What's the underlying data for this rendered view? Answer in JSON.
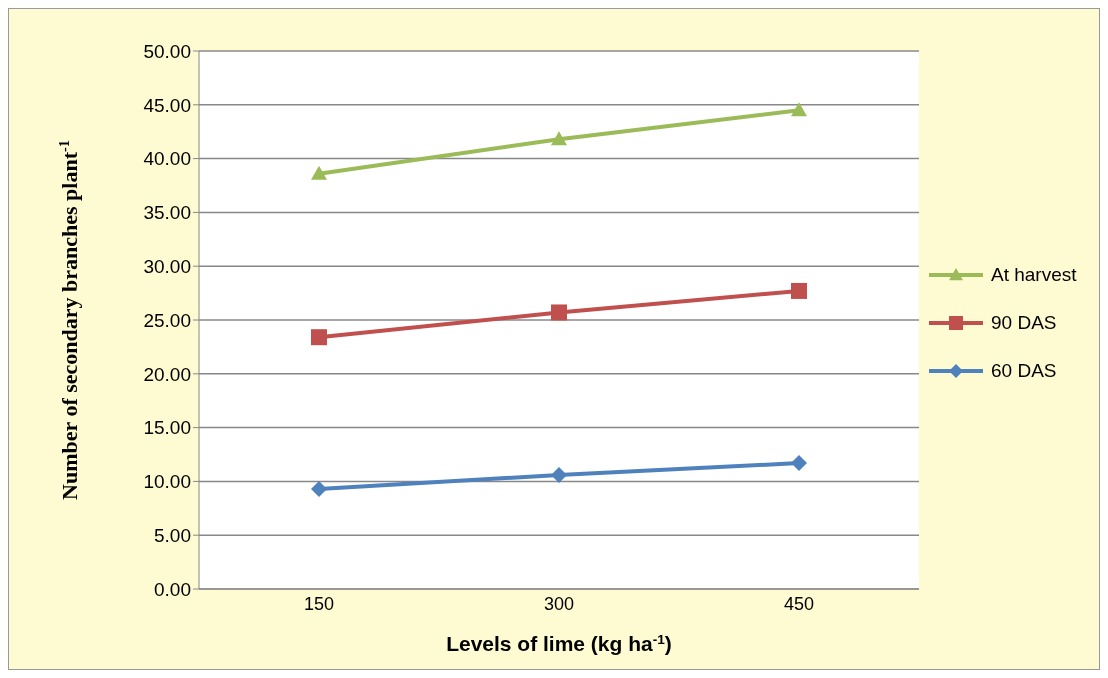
{
  "chart_data": {
    "type": "line",
    "xlabel": "Levels of lime (kg ha$^{-1}$)",
    "ylabel": "Number of secondary branches plant$^{-1}$",
    "categories": [
      "150",
      "300",
      "450"
    ],
    "series": [
      {
        "name": "At harvest",
        "color": "#9bbb59",
        "marker": "triangle",
        "values": [
          38.6,
          41.8,
          44.5
        ]
      },
      {
        "name": "90 DAS",
        "color": "#c0504d",
        "marker": "square",
        "values": [
          23.4,
          25.7,
          27.7
        ]
      },
      {
        "name": "60 DAS",
        "color": "#4f81bd",
        "marker": "diamond",
        "values": [
          9.3,
          10.6,
          11.7
        ]
      }
    ],
    "ylim": [
      0,
      50
    ],
    "yticks": [
      {
        "value": 0,
        "label": "0.00"
      },
      {
        "value": 5,
        "label": "5.00"
      },
      {
        "value": 10,
        "label": "10.00"
      },
      {
        "value": 15,
        "label": "15.00"
      },
      {
        "value": 20,
        "label": "20.00"
      },
      {
        "value": 25,
        "label": "25.00"
      },
      {
        "value": 30,
        "label": "30.00"
      },
      {
        "value": 35,
        "label": "35.00"
      },
      {
        "value": 40,
        "label": "40.00"
      },
      {
        "value": 45,
        "label": "45.00"
      },
      {
        "value": 50,
        "label": "50.00"
      }
    ],
    "grid": "y",
    "legend": "right",
    "line_style": "solid"
  }
}
